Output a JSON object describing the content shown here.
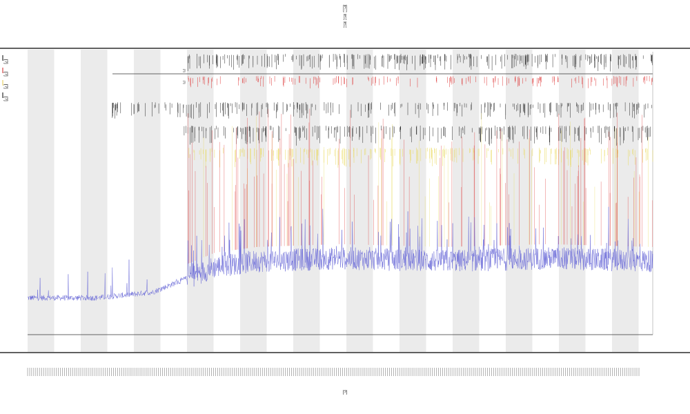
{
  "chart_title": {
    "line1": "[?]",
    "line2": "[?]",
    "line3": "[?]"
  },
  "legend": {
    "items": [
      {
        "label": "[?]",
        "color": "#000000"
      },
      {
        "label": "[?]",
        "color": "#cc2222"
      },
      {
        "label": "[?]",
        "color": "#e6c84a"
      },
      {
        "label": "[?]",
        "color": "#000000"
      }
    ]
  },
  "colors": {
    "axis": "#000000",
    "band": "#ebebeb",
    "signal": "#6a6ad8",
    "ref_line": "#333333",
    "red_markers": "#dd3333",
    "yellow_markers": "#e8d85a",
    "black_markers": "#222222"
  },
  "annotation": {
    "row1": "[?]",
    "row2": "[?]"
  },
  "chart_data": {
    "type": "line",
    "title": "",
    "xlabel": "[?]",
    "ylabel": "",
    "x_range": [
      0,
      900
    ],
    "y_range": [
      0,
      1
    ],
    "grid": false,
    "shaded_bands": "alternating vertical bands",
    "series": [
      {
        "color": "#6a6ad8",
        "trend": [
          [
            0,
            0.13
          ],
          [
            100,
            0.13
          ],
          [
            180,
            0.15
          ],
          [
            230,
            0.2
          ],
          [
            270,
            0.24
          ],
          [
            330,
            0.26
          ],
          [
            450,
            0.27
          ],
          [
            600,
            0.26
          ],
          [
            750,
            0.27
          ],
          [
            900,
            0.26
          ]
        ],
        "note": "dense noisy signal with frequent spikes"
      }
    ],
    "marker_rows": [
      {
        "color": "#222222",
        "row": "top",
        "description": "dense event ticks"
      },
      {
        "color": "#dd3333",
        "row": "second",
        "description": "event ticks"
      },
      {
        "color": "#222222",
        "row": "third",
        "description": "event ticks"
      },
      {
        "color": "#222222",
        "row": "fourth",
        "description": "event ticks"
      },
      {
        "color": "#e8d85a",
        "row": "fifth",
        "description": "event ticks"
      }
    ],
    "x_tick_labels": "dense, illegible"
  }
}
